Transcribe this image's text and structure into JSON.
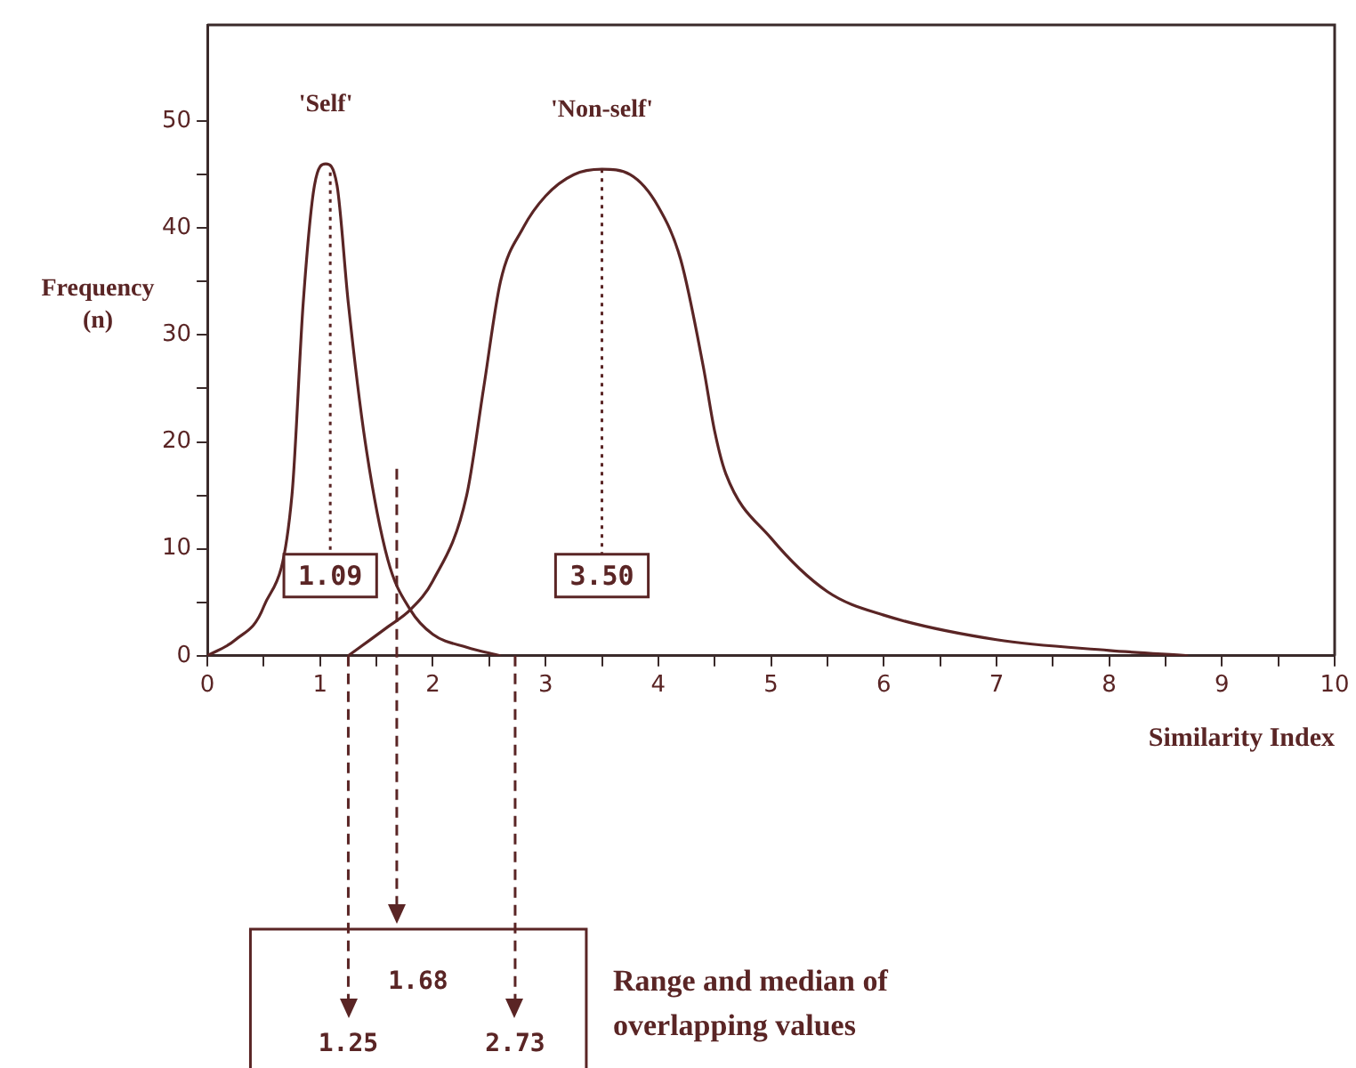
{
  "chart_data": {
    "type": "line",
    "xlabel": "Similarity Index",
    "ylabel": "Frequency (n)",
    "xlim": [
      0,
      10
    ],
    "xticks": [
      0,
      {
        "value": 0.5,
        "label": null
      },
      1,
      {
        "value": 1.5,
        "label": null
      },
      2,
      {
        "value": 2.5,
        "label": null
      },
      3,
      {
        "value": 3.5,
        "label": null
      },
      4,
      {
        "value": 4.5,
        "label": null
      },
      5,
      {
        "value": 5.5,
        "label": null
      },
      6,
      {
        "value": 6.5,
        "label": null
      },
      7,
      {
        "value": 7.5,
        "label": null
      },
      8,
      {
        "value": 8.5,
        "label": null
      },
      9,
      {
        "value": 9.5,
        "label": null
      },
      10
    ],
    "ylim": [
      0,
      59
    ],
    "yticks": [
      0,
      {
        "value": 5,
        "label": null
      },
      10,
      {
        "value": 15,
        "label": null
      },
      20,
      {
        "value": 25,
        "label": null
      },
      30,
      {
        "value": 35,
        "label": null
      },
      40,
      {
        "value": 45,
        "label": null
      },
      50
    ],
    "grid": false,
    "legend": false,
    "marker": "none",
    "line_style": "solid",
    "series": [
      {
        "name": "'Self'",
        "color": "#5a2525",
        "x": [
          0,
          0.25,
          0.5,
          0.75,
          0.85,
          0.95,
          1.05,
          1.15,
          1.25,
          1.4,
          1.6,
          1.8,
          2.0,
          2.3,
          2.6
        ],
        "values": [
          0,
          1.5,
          4.6,
          15,
          33,
          44,
          46,
          44,
          33,
          20,
          9,
          4.3,
          2,
          0.8,
          0
        ]
      },
      {
        "name": "'Non-self'",
        "color": "#5a2525",
        "x": [
          1.25,
          1.6,
          1.8,
          2.0,
          2.3,
          2.45,
          2.6,
          2.8,
          3.0,
          3.25,
          3.5,
          3.75,
          4.0,
          4.2,
          4.4,
          4.5,
          4.6,
          5.0,
          5.5,
          6.0,
          7.0,
          8.0,
          8.7
        ],
        "values": [
          0,
          2.7,
          4.3,
          7,
          15,
          25,
          35,
          40,
          43,
          45,
          45.5,
          45,
          42,
          37,
          27,
          21,
          17,
          11,
          6,
          3.8,
          1.5,
          0.5,
          0
        ]
      }
    ],
    "ref_lines": [
      {
        "axis": "x",
        "value": 1.09,
        "label": "1.09",
        "line_style": "dotted"
      },
      {
        "axis": "x",
        "value": 3.5,
        "label": "3.50",
        "line_style": "dotted"
      },
      {
        "axis": "x",
        "value": 1.68,
        "label": "1.68",
        "line_style": "dashed"
      },
      {
        "axis": "x",
        "value": 1.25,
        "label": "1.25",
        "line_style": "dashed"
      },
      {
        "axis": "x",
        "value": 2.73,
        "label": "2.73",
        "line_style": "dashed"
      }
    ],
    "annotations": [
      "Range and median of overlapping values"
    ]
  }
}
